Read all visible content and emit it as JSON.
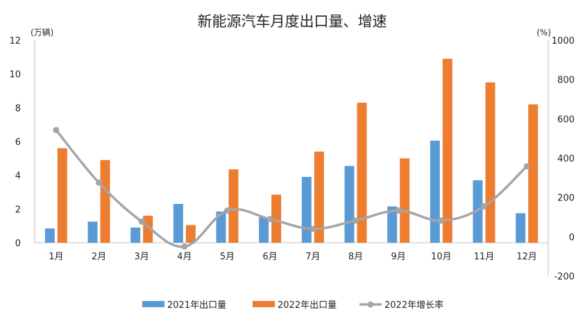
{
  "chart_data": {
    "type": "bar",
    "title": "新能源汽车月度出口量、增速",
    "categories": [
      "1月",
      "2月",
      "3月",
      "4月",
      "5月",
      "6月",
      "7月",
      "8月",
      "9月",
      "10月",
      "11月",
      "12月"
    ],
    "left_axis": {
      "unit_label": "(万辆)",
      "ylim": [
        0,
        12
      ],
      "ticks": [
        "0",
        "2",
        "4",
        "6",
        "8",
        "10",
        "12"
      ]
    },
    "right_axis": {
      "unit_label": "(%)",
      "ylim": [
        -200,
        1000
      ],
      "ticks": [
        "-200",
        "0",
        "200",
        "400",
        "600",
        "800",
        "1000"
      ],
      "negative_tick_color": "#e02020"
    },
    "series": [
      {
        "name": "2021年出口量",
        "type": "bar",
        "axis": "left",
        "color": "#5b9bd5",
        "values": [
          0.85,
          1.25,
          0.9,
          2.3,
          1.85,
          1.5,
          3.9,
          4.55,
          2.15,
          6.05,
          3.7,
          1.75
        ]
      },
      {
        "name": "2022年出口量",
        "type": "bar",
        "axis": "left",
        "color": "#ed7d31",
        "values": [
          5.6,
          4.9,
          1.6,
          1.05,
          4.35,
          2.85,
          5.4,
          8.3,
          5.0,
          10.9,
          9.5,
          8.2
        ]
      },
      {
        "name": "2022年增长率",
        "type": "line",
        "axis": "right",
        "color": "#a5a5a5",
        "values": [
          543,
          275,
          77,
          -50,
          133,
          90,
          40,
          82,
          133,
          82,
          155,
          358
        ]
      }
    ],
    "grid": false,
    "legend": "bottom"
  }
}
